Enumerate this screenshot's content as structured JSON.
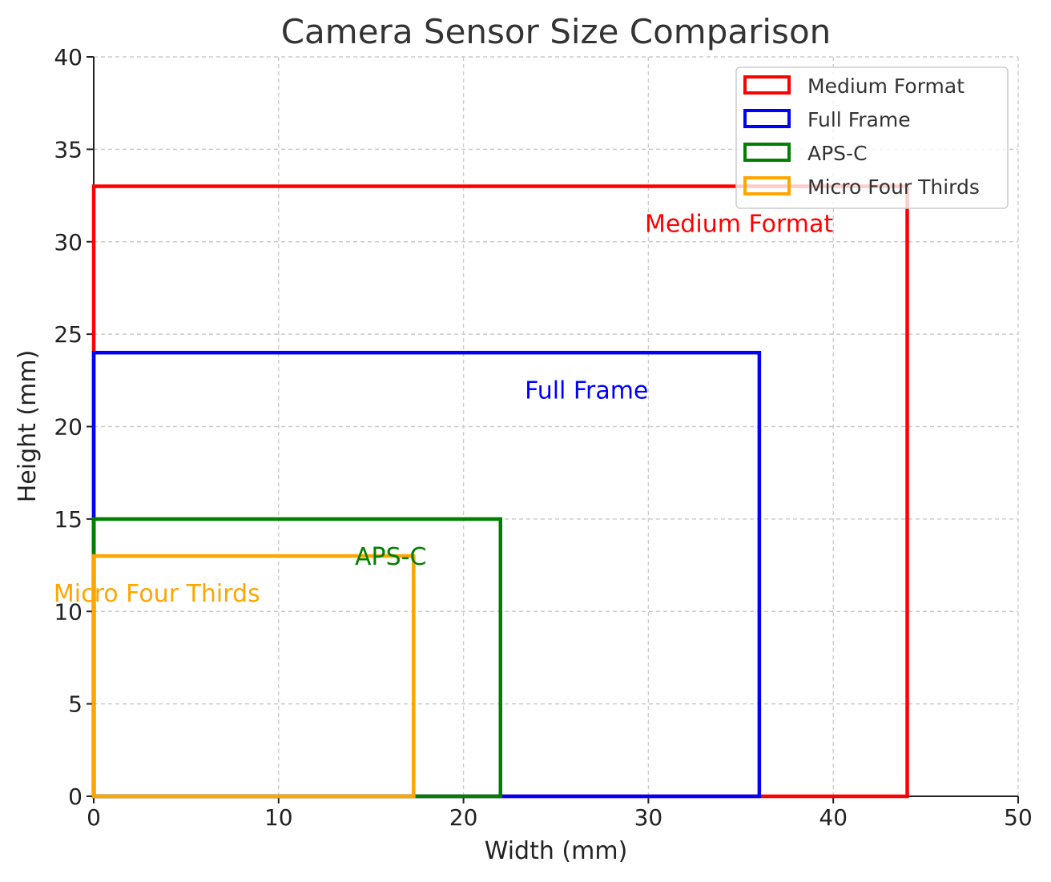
{
  "chart_data": {
    "type": "rectangle-outline",
    "title": "Camera Sensor Size Comparison",
    "xlabel": "Width (mm)",
    "ylabel": "Height (mm)",
    "xlim": [
      0,
      50
    ],
    "ylim": [
      0,
      40
    ],
    "xticks": [
      0,
      10,
      20,
      30,
      40,
      50
    ],
    "yticks": [
      0,
      5,
      10,
      15,
      20,
      25,
      30,
      35,
      40
    ],
    "grid": true,
    "legend_position": "top-right",
    "series": [
      {
        "name": "Medium Format",
        "width": 44,
        "height": 33,
        "color": "#ff0000",
        "annotation": {
          "text": "Medium Format",
          "x": 40,
          "y": 31
        }
      },
      {
        "name": "Full Frame",
        "width": 36,
        "height": 24,
        "color": "#0000ff",
        "annotation": {
          "text": "Full Frame",
          "x": 30,
          "y": 22
        }
      },
      {
        "name": "APS-C",
        "width": 22,
        "height": 15,
        "color": "#008000",
        "annotation": {
          "text": "APS-C",
          "x": 18,
          "y": 13
        }
      },
      {
        "name": "Micro Four Thirds",
        "width": 17.3,
        "height": 13,
        "color": "#ffa500",
        "annotation": {
          "text": "Micro Four Thirds",
          "x": 9,
          "y": 11
        }
      }
    ]
  }
}
